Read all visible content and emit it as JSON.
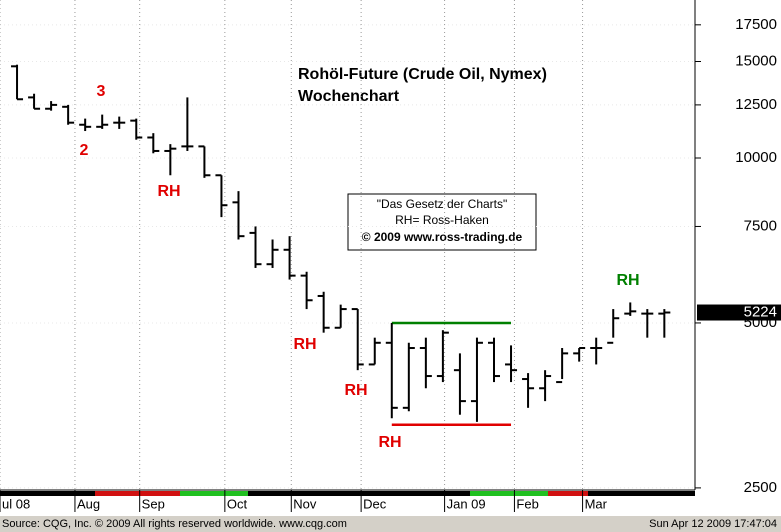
{
  "chart_data": {
    "type": "ohlc",
    "title": "Rohöl-Future (Crude Oil, Nymex)",
    "subtitle": "Wochenchart",
    "info_box": [
      "\"Das Gesetz der Charts\"",
      "RH= Ross-Haken",
      "© 2009 www.ross-trading.de"
    ],
    "source": "Source: CQG, Inc. © 2009 All rights reserved worldwide. www.cqg.com",
    "timestamp": "Sun Apr 12 2009 17:47:04",
    "color": "#000000",
    "log_scale": true,
    "grid": true,
    "ylim": [
      2478,
      19424
    ],
    "yticks": [
      2500,
      5000,
      7500,
      10000,
      12500,
      15000,
      17500
    ],
    "xlim": [
      -1,
      39.8
    ],
    "xticks": [
      {
        "value": -1,
        "label": "ul 08"
      },
      {
        "value": 3.4,
        "label": "Aug"
      },
      {
        "value": 7.2,
        "label": "Sep"
      },
      {
        "value": 12.2,
        "label": "Oct"
      },
      {
        "value": 16.1,
        "label": "Nov"
      },
      {
        "value": 20.2,
        "label": "Dec"
      },
      {
        "value": 25.1,
        "label": "Jan 09"
      },
      {
        "value": 29.2,
        "label": "Feb"
      },
      {
        "value": 33.2,
        "label": "Mar"
      }
    ],
    "last_price": 5224,
    "open": [
      14700,
      12900,
      12300,
      12400,
      11500,
      11400,
      11600,
      11700,
      10900,
      10300,
      10500,
      10500,
      9300,
      8300,
      7300,
      6400,
      6800,
      6100,
      5600,
      4900,
      5300,
      4200,
      4600,
      3500,
      4500,
      4000,
      4100,
      3600,
      4600,
      4200,
      3950,
      3800,
      3900,
      4400,
      4500,
      4600,
      5200,
      5200,
      5200
    ],
    "high": [
      14800,
      13100,
      12700,
      12500,
      11800,
      12000,
      11900,
      11800,
      11100,
      10600,
      12900,
      10500,
      9300,
      8700,
      7500,
      7100,
      7200,
      6200,
      5700,
      5400,
      5300,
      4700,
      5000,
      4600,
      4700,
      4850,
      4400,
      4700,
      4700,
      4550,
      4050,
      4100,
      4500,
      4500,
      4700,
      5300,
      5450,
      5300,
      5300
    ],
    "low": [
      12800,
      12300,
      12200,
      11500,
      11200,
      11300,
      11300,
      10800,
      10200,
      9300,
      10300,
      9200,
      7800,
      7100,
      6300,
      6300,
      6000,
      5300,
      4800,
      4900,
      4100,
      4200,
      3350,
      3450,
      3800,
      3900,
      3400,
      3300,
      3900,
      3900,
      3500,
      3600,
      3950,
      4250,
      4200,
      4700,
      5150,
      4700,
      4700
    ],
    "close": [
      12800,
      12300,
      12500,
      11600,
      11400,
      11500,
      11600,
      10900,
      10300,
      10400,
      10500,
      9300,
      8200,
      7200,
      6400,
      6800,
      6100,
      5500,
      4900,
      5300,
      4200,
      4600,
      3500,
      4500,
      4000,
      4800,
      3600,
      4600,
      4000,
      4100,
      3800,
      4000,
      4400,
      4500,
      4500,
      5100,
      5250,
      5200,
      5224
    ],
    "levels": [
      {
        "value": 5000,
        "color": "#008000",
        "from": 22,
        "to": 29
      },
      {
        "value": 3260,
        "color": "#e00000",
        "from": 22,
        "to": 29
      }
    ],
    "annotations": [
      {
        "text": "3",
        "color": "#e00000"
      },
      {
        "text": "2",
        "color": "#e00000"
      },
      {
        "text": "RH",
        "color": "#e00000"
      },
      {
        "text": "RH",
        "color": "#e00000"
      },
      {
        "text": "RH",
        "color": "#e00000"
      },
      {
        "text": "RH",
        "color": "#e00000"
      },
      {
        "text": "RH",
        "color": "#008000"
      }
    ]
  }
}
